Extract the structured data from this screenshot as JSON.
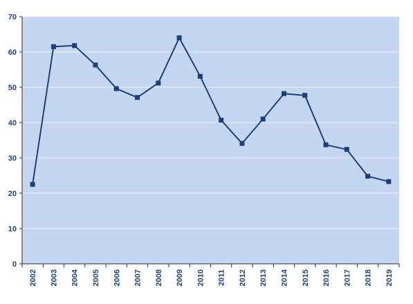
{
  "chart_data": {
    "type": "line",
    "title": "",
    "xlabel": "",
    "ylabel": "",
    "categories": [
      "2002",
      "2003",
      "2004",
      "2005",
      "2006",
      "2007",
      "2008",
      "2009",
      "2010",
      "2011",
      "2012",
      "2013",
      "2014",
      "2015",
      "2016",
      "2017",
      "2018",
      "2019"
    ],
    "series": [
      {
        "values": [
          22.5,
          61.5,
          61.8,
          56.3,
          49.6,
          47.1,
          51.2,
          64.0,
          53.1,
          40.7,
          34.1,
          41.0,
          48.2,
          47.7,
          33.7,
          32.4,
          24.8,
          23.3
        ]
      }
    ],
    "ylim": [
      0,
      70
    ],
    "yticks": [
      0,
      10,
      20,
      30,
      40,
      50,
      60,
      70
    ],
    "grid": true,
    "legend": "none",
    "colors": {
      "plot_background": "#c5d7f0",
      "line": "#1f3f7a",
      "marker": "#1f3f7a",
      "gridline": "#e6eefa",
      "axis": "#2b2b2b",
      "tick_text": "#1f3f7a"
    }
  }
}
